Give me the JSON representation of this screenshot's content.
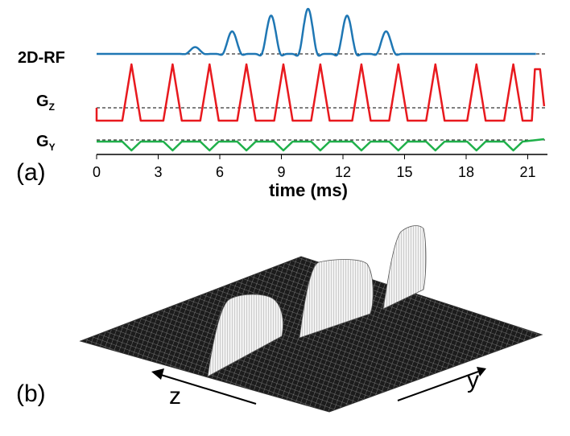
{
  "panel_a": {
    "label": "(a)",
    "channels": [
      {
        "name": "2D-RF",
        "subscript": "",
        "color": "#1f77b4"
      },
      {
        "name": "G",
        "subscript": "Z",
        "color": "#e8191e"
      },
      {
        "name": "G",
        "subscript": "Y",
        "color": "#1fb04a"
      }
    ],
    "x_axis": {
      "label": "time (ms)",
      "ticks": [
        "0",
        "3",
        "6",
        "9",
        "12",
        "15",
        "18",
        "21"
      ],
      "range": [
        0,
        21.8
      ]
    }
  },
  "panel_b": {
    "label": "(b)",
    "axis_z": "z",
    "axis_y": "y"
  },
  "chart_data": {
    "type": "line",
    "xlabel": "time (ms)",
    "xlim": [
      0,
      21.8
    ],
    "series": [
      {
        "name": "2D-RF",
        "peak_times_ms": [
          4.8,
          6.6,
          8.5,
          10.3,
          12.2,
          14.1
        ],
        "relative_peak_amplitude": [
          0.15,
          0.5,
          0.85,
          1.0,
          0.85,
          0.5
        ]
      },
      {
        "name": "GZ",
        "shape": "trapezoid train",
        "peak_times_ms": [
          1.7,
          3.7,
          5.5,
          7.3,
          9.1,
          10.9,
          12.9,
          14.7,
          16.5,
          18.5,
          20.3
        ]
      },
      {
        "name": "GY",
        "shape": "blip train",
        "blip_times_ms": [
          1.7,
          3.7,
          5.5,
          7.3,
          9.1,
          10.9,
          12.9,
          14.7,
          16.5,
          18.5,
          20.3
        ]
      }
    ]
  }
}
